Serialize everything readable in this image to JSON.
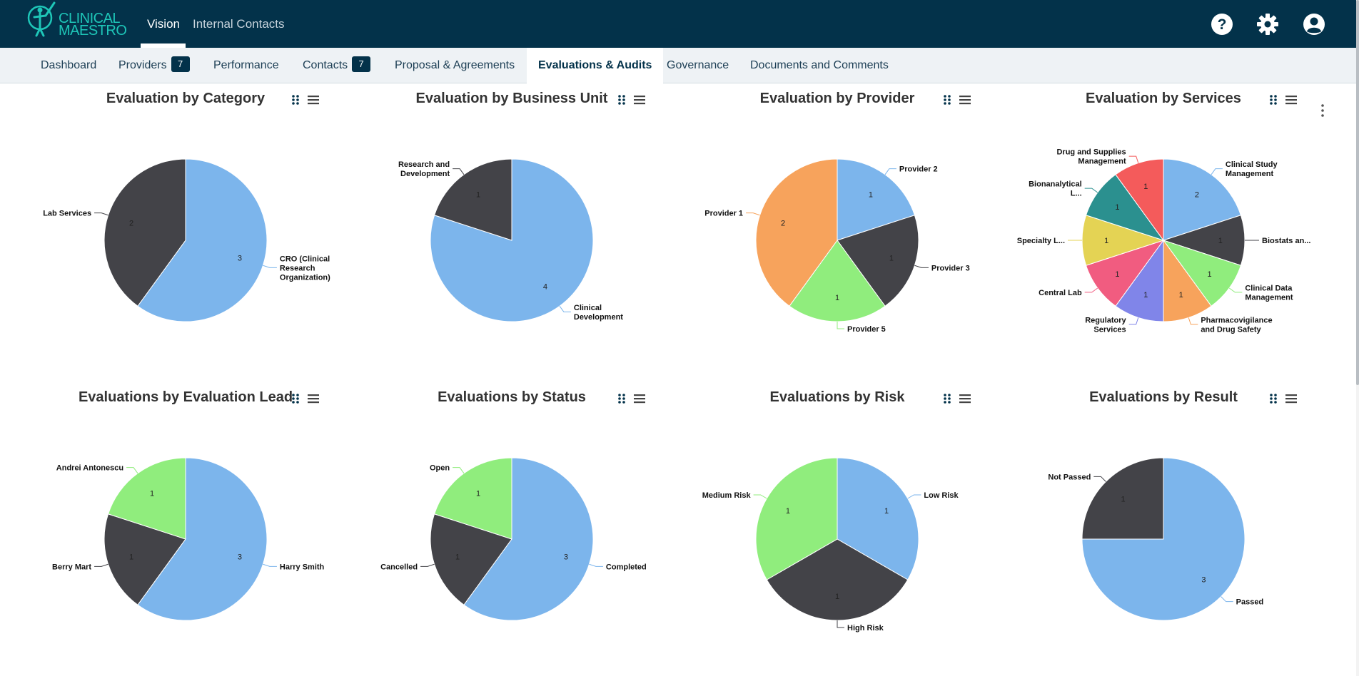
{
  "app": {
    "logo_line1": "CLINICAL",
    "logo_line2": "MAESTRO",
    "top_nav": [
      {
        "label": "Vision",
        "active": true
      },
      {
        "label": "Internal Contacts",
        "active": false
      }
    ],
    "icons": {
      "help": "help-circle-icon",
      "settings": "gear-icon",
      "account": "user-account-icon"
    }
  },
  "sub_nav": [
    {
      "label": "Dashboard",
      "badge": null
    },
    {
      "label": "Providers",
      "badge": "7"
    },
    {
      "label": "Performance",
      "badge": null
    },
    {
      "label": "Contacts",
      "badge": "7"
    },
    {
      "label": "Proposal & Agreements",
      "badge": null
    },
    {
      "label": "Evaluations & Audits",
      "badge": null,
      "active": true
    },
    {
      "label": "Governance",
      "badge": null
    },
    {
      "label": "Documents and Comments",
      "badge": null
    }
  ],
  "colors": {
    "topbar": "#03324a",
    "blue": "#7cb5ec",
    "dark": "#434348",
    "green": "#90ed7d",
    "orange": "#f7a35c",
    "purple": "#8085e9",
    "pink": "#f15c80",
    "yellow": "#e4d354",
    "teal": "#2b908f",
    "red": "#f45b5b"
  },
  "chart_data": [
    {
      "type": "pie",
      "title": "Evaluation by Category",
      "series": [
        {
          "name": "CRO (Clinical Research Organization)",
          "value": 3,
          "color": "#7cb5ec"
        },
        {
          "name": "Lab Services",
          "value": 2,
          "color": "#434348"
        }
      ]
    },
    {
      "type": "pie",
      "title": "Evaluation by Business Unit",
      "series": [
        {
          "name": "Clinical Development",
          "value": 4,
          "color": "#7cb5ec"
        },
        {
          "name": "Research and Development",
          "value": 1,
          "color": "#434348"
        }
      ]
    },
    {
      "type": "pie",
      "title": "Evaluation by Provider",
      "series": [
        {
          "name": "Provider 2",
          "value": 1,
          "color": "#7cb5ec"
        },
        {
          "name": "Provider 3",
          "value": 1,
          "color": "#434348"
        },
        {
          "name": "Provider 5",
          "value": 1,
          "color": "#90ed7d"
        },
        {
          "name": "Provider 1",
          "value": 2,
          "color": "#f7a35c"
        }
      ]
    },
    {
      "type": "pie",
      "title": "Evaluation by Services",
      "series": [
        {
          "name": "Clinical Study Management",
          "value": 2,
          "color": "#7cb5ec"
        },
        {
          "name": "Biostats an...",
          "value": 1,
          "color": "#434348"
        },
        {
          "name": "Clinical Data Management",
          "value": 1,
          "color": "#90ed7d"
        },
        {
          "name": "Pharmacovigilance and Drug Safety",
          "value": 1,
          "color": "#f7a35c"
        },
        {
          "name": "Regulatory Services",
          "value": 1,
          "color": "#8085e9"
        },
        {
          "name": "Central Lab",
          "value": 1,
          "color": "#f15c80"
        },
        {
          "name": "Specialty L...",
          "value": 1,
          "color": "#e4d354"
        },
        {
          "name": "Bionanalytical L...",
          "value": 1,
          "color": "#2b908f"
        },
        {
          "name": "Drug and Supplies Management",
          "value": 1,
          "color": "#f45b5b"
        }
      ]
    },
    {
      "type": "pie",
      "title": "Evaluations by Evaluation Lead",
      "series": [
        {
          "name": "Harry Smith",
          "value": 3,
          "color": "#7cb5ec"
        },
        {
          "name": "Berry Mart",
          "value": 1,
          "color": "#434348"
        },
        {
          "name": "Andrei Antonescu",
          "value": 1,
          "color": "#90ed7d"
        }
      ]
    },
    {
      "type": "pie",
      "title": "Evaluations by Status",
      "series": [
        {
          "name": "Completed",
          "value": 3,
          "color": "#7cb5ec"
        },
        {
          "name": "Cancelled",
          "value": 1,
          "color": "#434348"
        },
        {
          "name": "Open",
          "value": 1,
          "color": "#90ed7d"
        }
      ]
    },
    {
      "type": "pie",
      "title": "Evaluations by Risk",
      "series": [
        {
          "name": "Low Risk",
          "value": 1,
          "color": "#7cb5ec"
        },
        {
          "name": "High Risk",
          "value": 1,
          "color": "#434348"
        },
        {
          "name": "Medium Risk",
          "value": 1,
          "color": "#90ed7d"
        }
      ]
    },
    {
      "type": "pie",
      "title": "Evaluations by Result",
      "series": [
        {
          "name": "Passed",
          "value": 3,
          "color": "#7cb5ec"
        },
        {
          "name": "Not Passed",
          "value": 1,
          "color": "#434348"
        }
      ]
    }
  ]
}
